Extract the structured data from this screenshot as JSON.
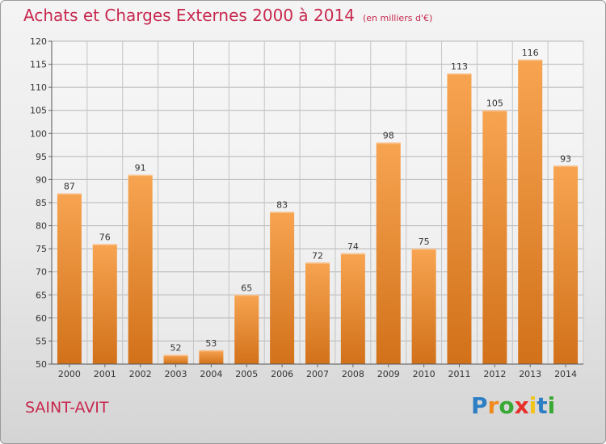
{
  "header": {
    "title": "Achats et Charges Externes 2000 à 2014",
    "subtitle": "(en milliers d'€)"
  },
  "footer": {
    "commune": "SAINT-AVIT",
    "logo_letters": [
      "P",
      "r",
      "o",
      "x",
      "i",
      "t",
      "i"
    ],
    "logo_colors": [
      "#2e7ec4",
      "#f08a1c",
      "#39a935",
      "#e8302a",
      "#f0c419",
      "#2e7ec4",
      "#39a935"
    ]
  },
  "chart_data": {
    "type": "bar",
    "categories": [
      "2000",
      "2001",
      "2002",
      "2003",
      "2004",
      "2005",
      "2006",
      "2007",
      "2008",
      "2009",
      "2010",
      "2011",
      "2012",
      "2013",
      "2014"
    ],
    "values": [
      87,
      76,
      91,
      52,
      53,
      65,
      83,
      72,
      74,
      98,
      75,
      113,
      105,
      116,
      93
    ],
    "title": "Achats et Charges Externes 2000 à 2014",
    "ylim": [
      50,
      120
    ],
    "yticks": [
      50,
      55,
      60,
      65,
      70,
      75,
      80,
      85,
      90,
      95,
      100,
      105,
      110,
      115,
      120
    ],
    "grid": true,
    "bar_color": "#f0952e"
  }
}
